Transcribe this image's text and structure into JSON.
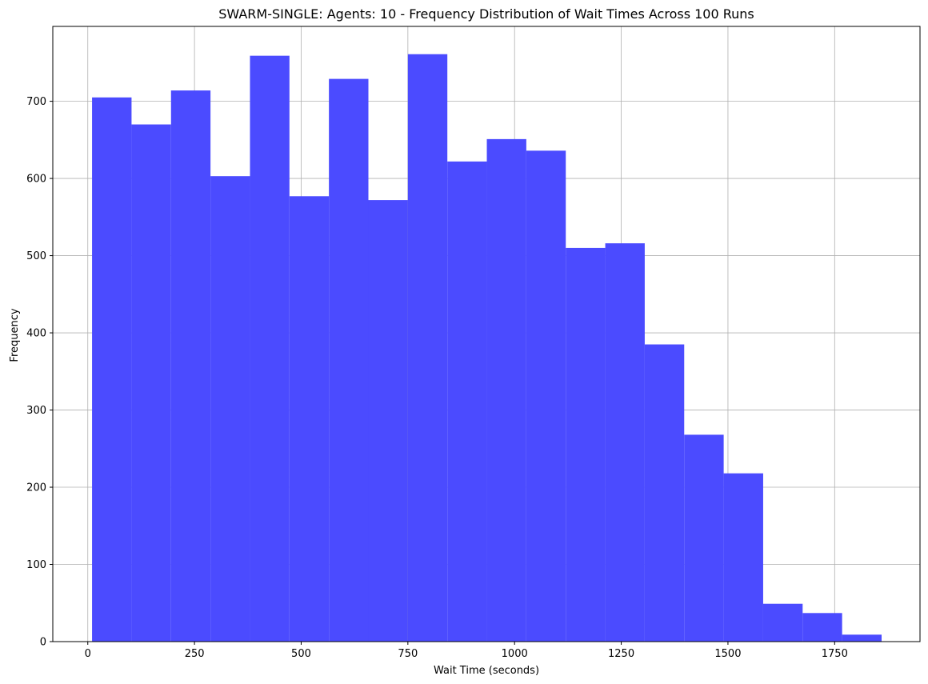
{
  "chart_data": {
    "type": "bar",
    "title": "SWARM-SINGLE: Agents: 10 - Frequency Distribution of Wait Times Across 100 Runs",
    "xlabel": "Wait Time (seconds)",
    "ylabel": "Frequency",
    "bar_color": "#4b4bff",
    "grid": true,
    "xlim": [
      -82,
      1950
    ],
    "ylim": [
      0,
      797
    ],
    "xticks": [
      0,
      250,
      500,
      750,
      1000,
      1250,
      1500,
      1750
    ],
    "yticks": [
      0,
      100,
      200,
      300,
      400,
      500,
      600,
      700
    ],
    "bins": [
      {
        "x0": 10,
        "x1": 102.5,
        "value": 705
      },
      {
        "x0": 102.5,
        "x1": 195,
        "value": 670
      },
      {
        "x0": 195,
        "x1": 287.5,
        "value": 714
      },
      {
        "x0": 287.5,
        "x1": 380,
        "value": 603
      },
      {
        "x0": 380,
        "x1": 472.5,
        "value": 759
      },
      {
        "x0": 472.5,
        "x1": 565,
        "value": 577
      },
      {
        "x0": 565,
        "x1": 657.5,
        "value": 729
      },
      {
        "x0": 657.5,
        "x1": 750,
        "value": 572
      },
      {
        "x0": 750,
        "x1": 842.5,
        "value": 761
      },
      {
        "x0": 842.5,
        "x1": 935,
        "value": 622
      },
      {
        "x0": 935,
        "x1": 1027.5,
        "value": 651
      },
      {
        "x0": 1027.5,
        "x1": 1120,
        "value": 636
      },
      {
        "x0": 1120,
        "x1": 1212.5,
        "value": 510
      },
      {
        "x0": 1212.5,
        "x1": 1305,
        "value": 516
      },
      {
        "x0": 1305,
        "x1": 1397.5,
        "value": 385
      },
      {
        "x0": 1397.5,
        "x1": 1490,
        "value": 268
      },
      {
        "x0": 1490,
        "x1": 1582.5,
        "value": 218
      },
      {
        "x0": 1582.5,
        "x1": 1675,
        "value": 49
      },
      {
        "x0": 1675,
        "x1": 1767.5,
        "value": 37
      },
      {
        "x0": 1767.5,
        "x1": 1860,
        "value": 9
      }
    ]
  }
}
